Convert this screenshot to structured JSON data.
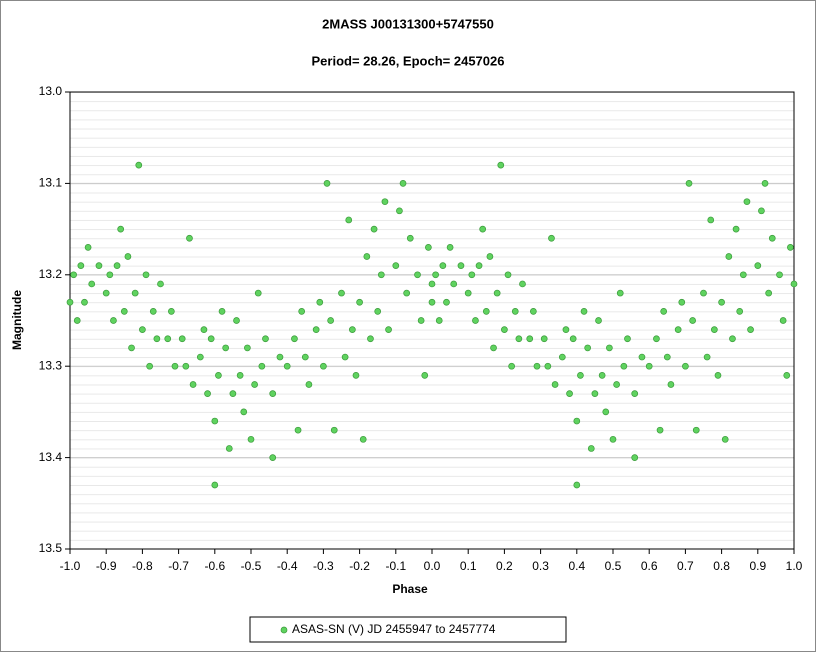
{
  "chart_data": {
    "type": "scatter",
    "title": "2MASS J00131300+5747550",
    "subtitle": "Period= 28.26, Epoch= 2457026",
    "x_label": "Phase",
    "y_label": "Magnitude",
    "xlim": [
      -1.0,
      1.0
    ],
    "xticks": [
      {
        "value": -1.0,
        "label": "-1.0"
      },
      -0.9,
      -0.8,
      -0.7,
      -0.6,
      -0.5,
      -0.4,
      -0.3,
      -0.2,
      -0.1,
      {
        "value": 0,
        "label": "0.0"
      },
      0.1,
      0.2,
      0.3,
      0.4,
      0.5,
      0.6,
      0.7,
      0.8,
      0.9,
      {
        "value": 1.0,
        "label": "1.0"
      }
    ],
    "ylim": [
      13.0,
      13.5
    ],
    "y_inverted": true,
    "yticks": [
      {
        "value": 13.0,
        "label": "13.0"
      },
      13.1,
      13.2,
      13.3,
      13.4,
      13.5
    ],
    "grid": true,
    "legend": "bottom",
    "series": [
      {
        "name": "ASAS-SN (V) JD 2455947 to 2457774",
        "color": "#5fd25f",
        "x": [
          -1.0,
          -0.99,
          -0.98,
          -0.97,
          -0.96,
          -0.95,
          -0.94,
          -0.92,
          -0.9,
          -0.89,
          -0.88,
          -0.87,
          -0.86,
          -0.85,
          -0.84,
          -0.83,
          -0.82,
          -0.81,
          -0.8,
          -0.79,
          -0.78,
          -0.77,
          -0.76,
          -0.75,
          -0.73,
          -0.72,
          -0.71,
          -0.69,
          -0.68,
          -0.67,
          -0.66,
          -0.64,
          -0.63,
          -0.62,
          -0.61,
          -0.6,
          -0.6,
          -0.59,
          -0.58,
          -0.57,
          -0.56,
          -0.55,
          -0.54,
          -0.53,
          -0.52,
          -0.51,
          -0.5,
          -0.49,
          -0.48,
          -0.47,
          -0.46,
          -0.44,
          -0.44,
          -0.42,
          -0.4,
          -0.38,
          -0.37,
          -0.36,
          -0.35,
          -0.34,
          -0.32,
          -0.31,
          -0.3,
          -0.29,
          -0.28,
          -0.27,
          -0.25,
          -0.24,
          -0.23,
          -0.22,
          -0.21,
          -0.2,
          -0.19,
          -0.18,
          -0.17,
          -0.16,
          -0.15,
          -0.14,
          -0.13,
          -0.12,
          -0.1,
          -0.09,
          -0.08,
          -0.07,
          -0.06,
          -0.04,
          -0.03,
          -0.02,
          -0.01,
          0.0,
          0.0,
          0.01,
          0.02,
          0.03,
          0.04,
          0.05,
          0.06,
          0.08,
          0.1,
          0.11,
          0.12,
          0.13,
          0.14,
          0.15,
          0.16,
          0.17,
          0.18,
          0.19,
          0.2,
          0.21,
          0.22,
          0.23,
          0.24,
          0.25,
          0.27,
          0.28,
          0.29,
          0.31,
          0.32,
          0.33,
          0.34,
          0.36,
          0.37,
          0.38,
          0.39,
          0.4,
          0.4,
          0.41,
          0.42,
          0.43,
          0.44,
          0.45,
          0.46,
          0.47,
          0.48,
          0.49,
          0.5,
          0.51,
          0.52,
          0.53,
          0.54,
          0.56,
          0.56,
          0.58,
          0.6,
          0.62,
          0.63,
          0.64,
          0.65,
          0.66,
          0.68,
          0.69,
          0.7,
          0.71,
          0.72,
          0.73,
          0.75,
          0.76,
          0.77,
          0.78,
          0.79,
          0.8,
          0.81,
          0.82,
          0.83,
          0.84,
          0.85,
          0.86,
          0.87,
          0.88,
          0.9,
          0.91,
          0.92,
          0.93,
          0.94,
          0.96,
          0.97,
          0.98,
          0.99,
          1.0
        ],
        "values": [
          13.23,
          13.2,
          13.25,
          13.19,
          13.23,
          13.17,
          13.21,
          13.19,
          13.22,
          13.2,
          13.25,
          13.19,
          13.15,
          13.24,
          13.18,
          13.28,
          13.22,
          13.08,
          13.26,
          13.2,
          13.3,
          13.24,
          13.27,
          13.21,
          13.27,
          13.24,
          13.3,
          13.27,
          13.3,
          13.16,
          13.32,
          13.29,
          13.26,
          13.33,
          13.27,
          13.43,
          13.36,
          13.31,
          13.24,
          13.28,
          13.39,
          13.33,
          13.25,
          13.31,
          13.35,
          13.28,
          13.38,
          13.32,
          13.22,
          13.3,
          13.27,
          13.4,
          13.33,
          13.29,
          13.3,
          13.27,
          13.37,
          13.24,
          13.29,
          13.32,
          13.26,
          13.23,
          13.3,
          13.1,
          13.25,
          13.37,
          13.22,
          13.29,
          13.14,
          13.26,
          13.31,
          13.23,
          13.38,
          13.18,
          13.27,
          13.15,
          13.24,
          13.2,
          13.12,
          13.26,
          13.19,
          13.13,
          13.1,
          13.22,
          13.16,
          13.2,
          13.25,
          13.31,
          13.17,
          13.21,
          13.23,
          13.2,
          13.25,
          13.19,
          13.23,
          13.17,
          13.21,
          13.19,
          13.22,
          13.2,
          13.25,
          13.19,
          13.15,
          13.24,
          13.18,
          13.28,
          13.22,
          13.08,
          13.26,
          13.2,
          13.3,
          13.24,
          13.27,
          13.21,
          13.27,
          13.24,
          13.3,
          13.27,
          13.3,
          13.16,
          13.32,
          13.29,
          13.26,
          13.33,
          13.27,
          13.43,
          13.36,
          13.31,
          13.24,
          13.28,
          13.39,
          13.33,
          13.25,
          13.31,
          13.35,
          13.28,
          13.38,
          13.32,
          13.22,
          13.3,
          13.27,
          13.4,
          13.33,
          13.29,
          13.3,
          13.27,
          13.37,
          13.24,
          13.29,
          13.32,
          13.26,
          13.23,
          13.3,
          13.1,
          13.25,
          13.37,
          13.22,
          13.29,
          13.14,
          13.26,
          13.31,
          13.23,
          13.38,
          13.18,
          13.27,
          13.15,
          13.24,
          13.2,
          13.12,
          13.26,
          13.19,
          13.13,
          13.1,
          13.22,
          13.16,
          13.2,
          13.25,
          13.31,
          13.17,
          13.21
        ]
      }
    ]
  }
}
